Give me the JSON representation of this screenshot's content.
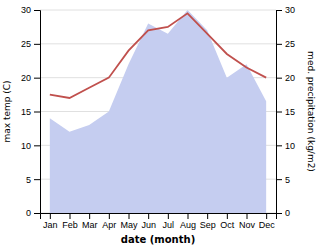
{
  "chart_data": {
    "type": "line",
    "categories": [
      "Jan",
      "Feb",
      "Mar",
      "Apr",
      "May",
      "Jun",
      "Jul",
      "Aug",
      "Sep",
      "Oct",
      "Nov",
      "Dec"
    ],
    "xlabel": "date (month)",
    "ylabel": "max temp (C)",
    "y2label": "med. precipitation (kg/m2)",
    "series": [
      {
        "type": "area",
        "axis": "y2",
        "color": "#c5cdf0",
        "values": [
          14.0,
          12.0,
          13.0,
          15.0,
          22.0,
          28.0,
          26.5,
          30.0,
          27.0,
          20.0,
          22.0,
          16.5
        ]
      },
      {
        "type": "line",
        "color": "#c0504d",
        "values": [
          17.5,
          17.0,
          18.5,
          20.0,
          24.0,
          27.0,
          27.5,
          29.5,
          26.5,
          23.5,
          21.5,
          20.0
        ]
      }
    ],
    "ylim": [
      0,
      30
    ],
    "yticks": [
      0,
      5,
      10,
      15,
      20,
      25,
      30
    ],
    "y2lim": [
      0,
      30
    ],
    "y2ticks": [
      0,
      5,
      10,
      15,
      20,
      25,
      30
    ],
    "grid": true
  }
}
